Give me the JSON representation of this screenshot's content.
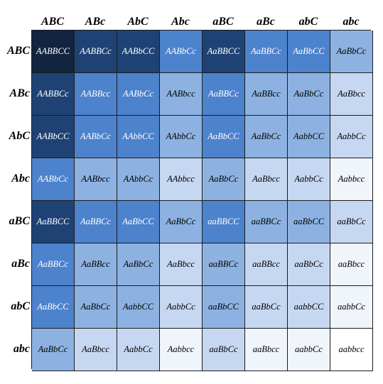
{
  "gametes": [
    "ABC",
    "ABc",
    "AbC",
    "Abc",
    "aBC",
    "aBc",
    "abC",
    "abc"
  ],
  "palette": {
    "6": "#12243f",
    "5": "#1f4275",
    "4": "#4d82cc",
    "3": "#8db2e2",
    "2": "#c6d8f1",
    "1": "#f0f4fb",
    "0": "#ffffff",
    "dark_text": "#000000",
    "light_text": "#ffffff"
  },
  "cells": [
    [
      "AABBCC",
      "AABBCc",
      "AABbCC",
      "AABbCc",
      "AaBBCC",
      "AaBBCc",
      "AaBbCC",
      "AaBbCc"
    ],
    [
      "AABBCc",
      "AABBcc",
      "AABbCc",
      "AABbcc",
      "AaBBCc",
      "AaBBcc",
      "AaBbCc",
      "AaBbcc"
    ],
    [
      "AABbCC",
      "AABbCc",
      "AAbbCC",
      "AAbbCc",
      "AaBbCC",
      "AaBbCc",
      "AabbCC",
      "AabbCc"
    ],
    [
      "AABbCc",
      "AABbcc",
      "AAbbCc",
      "AAbbcc",
      "AaBbCc",
      "AaBbcc",
      "AabbCc",
      "Aabbcc"
    ],
    [
      "AaBBCC",
      "AaBBCc",
      "AaBbCC",
      "AaBbCc",
      "aaBBCC",
      "aaBBCc",
      "aaBbCC",
      "aaBbCc"
    ],
    [
      "AaBBCc",
      "AaBBcc",
      "AaBbCc",
      "AaBbcc",
      "aaBBCc",
      "aaBBcc",
      "aaBbCc",
      "aaBbcc"
    ],
    [
      "AaBbCC",
      "AaBbCc",
      "AabbCC",
      "AabbCc",
      "aaBbCC",
      "aaBbCc",
      "aabbCC",
      "aabbCc"
    ],
    [
      "AaBbCc",
      "AaBbcc",
      "AabbCc",
      "Aabbcc",
      "aaBbCc",
      "aaBbcc",
      "aabbCc",
      "aabbcc"
    ]
  ]
}
